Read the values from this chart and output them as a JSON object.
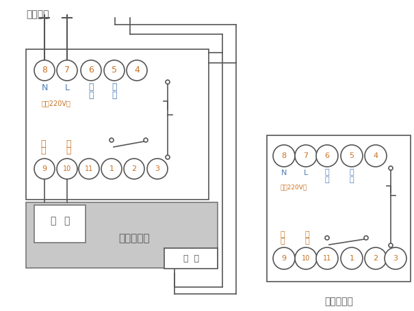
{
  "top_terminals": [
    "8",
    "7",
    "6",
    "5",
    "4"
  ],
  "bot_terminals": [
    "9",
    "10",
    "11",
    "1",
    "2",
    "3"
  ],
  "cc": "#c87020",
  "bc": "#4a7ab5",
  "oc": "#c87020",
  "lc": "#555555",
  "gc": "#c8c8c8",
  "bg": "#ffffff"
}
